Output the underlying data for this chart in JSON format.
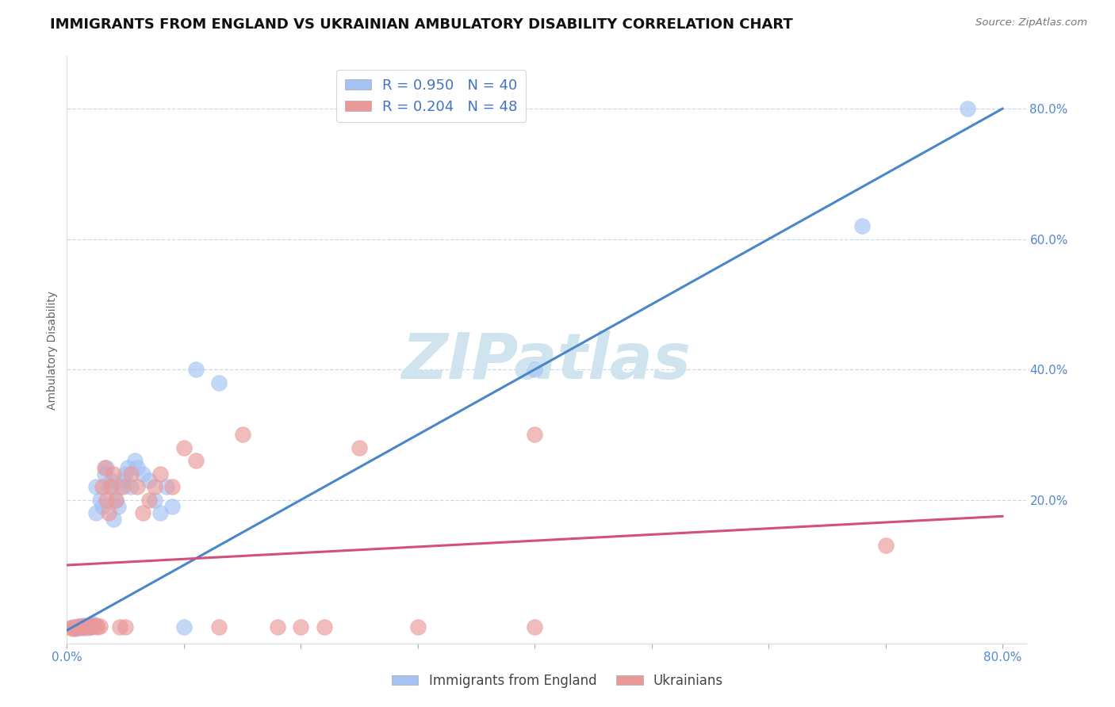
{
  "title": "IMMIGRANTS FROM ENGLAND VS UKRAINIAN AMBULATORY DISABILITY CORRELATION CHART",
  "source_text": "Source: ZipAtlas.com",
  "ylabel": "Ambulatory Disability",
  "xlim": [
    0.0,
    0.82
  ],
  "ylim": [
    -0.02,
    0.88
  ],
  "ytick_positions": [
    0.2,
    0.4,
    0.6,
    0.8
  ],
  "ytick_labels": [
    "20.0%",
    "40.0%",
    "60.0%",
    "80.0%"
  ],
  "xtick_positions": [
    0.0,
    0.1,
    0.2,
    0.3,
    0.4,
    0.5,
    0.6,
    0.7,
    0.8
  ],
  "xtick_labels": [
    "0.0%",
    "",
    "",
    "",
    "",
    "",
    "",
    "",
    "80.0%"
  ],
  "blue_R": 0.95,
  "blue_N": 40,
  "pink_R": 0.204,
  "pink_N": 48,
  "blue_color": "#a4c2f4",
  "pink_color": "#ea9999",
  "blue_line_color": "#4a86c8",
  "pink_line_color": "#d45079",
  "watermark_text": "ZIPatlas",
  "watermark_color": "#d0e4f0",
  "legend_blue_label": "Immigrants from England",
  "legend_pink_label": "Ukrainians",
  "title_fontsize": 13,
  "axis_label_fontsize": 10,
  "tick_fontsize": 11,
  "legend_fontsize": 13,
  "blue_scatter_x": [
    0.005,
    0.008,
    0.01,
    0.012,
    0.015,
    0.015,
    0.018,
    0.02,
    0.022,
    0.022,
    0.025,
    0.025,
    0.028,
    0.03,
    0.032,
    0.034,
    0.036,
    0.038,
    0.04,
    0.042,
    0.044,
    0.046,
    0.048,
    0.05,
    0.052,
    0.055,
    0.058,
    0.06,
    0.065,
    0.07,
    0.075,
    0.08,
    0.085,
    0.09,
    0.1,
    0.11,
    0.13,
    0.4,
    0.68,
    0.77
  ],
  "blue_scatter_y": [
    0.005,
    0.003,
    0.004,
    0.006,
    0.005,
    0.008,
    0.004,
    0.006,
    0.007,
    0.01,
    0.18,
    0.22,
    0.2,
    0.19,
    0.24,
    0.25,
    0.22,
    0.23,
    0.17,
    0.2,
    0.19,
    0.22,
    0.23,
    0.24,
    0.25,
    0.22,
    0.26,
    0.25,
    0.24,
    0.23,
    0.2,
    0.18,
    0.22,
    0.19,
    0.005,
    0.4,
    0.38,
    0.4,
    0.62,
    0.8
  ],
  "pink_scatter_x": [
    0.003,
    0.005,
    0.007,
    0.008,
    0.01,
    0.012,
    0.012,
    0.014,
    0.015,
    0.016,
    0.018,
    0.019,
    0.02,
    0.021,
    0.022,
    0.024,
    0.025,
    0.026,
    0.028,
    0.03,
    0.032,
    0.034,
    0.036,
    0.038,
    0.04,
    0.042,
    0.045,
    0.048,
    0.05,
    0.055,
    0.06,
    0.065,
    0.07,
    0.075,
    0.08,
    0.09,
    0.1,
    0.11,
    0.13,
    0.15,
    0.18,
    0.2,
    0.22,
    0.25,
    0.3,
    0.4,
    0.4,
    0.7
  ],
  "pink_scatter_y": [
    0.004,
    0.003,
    0.005,
    0.004,
    0.006,
    0.005,
    0.007,
    0.004,
    0.006,
    0.005,
    0.007,
    0.006,
    0.008,
    0.005,
    0.007,
    0.006,
    0.008,
    0.005,
    0.007,
    0.22,
    0.25,
    0.2,
    0.18,
    0.22,
    0.24,
    0.2,
    0.005,
    0.22,
    0.005,
    0.24,
    0.22,
    0.18,
    0.2,
    0.22,
    0.24,
    0.22,
    0.28,
    0.26,
    0.005,
    0.3,
    0.005,
    0.005,
    0.005,
    0.28,
    0.005,
    0.3,
    0.005,
    0.13
  ]
}
